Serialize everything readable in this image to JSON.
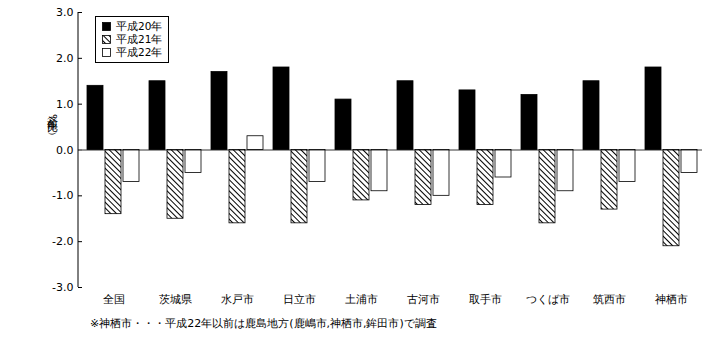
{
  "chart_data": {
    "type": "bar",
    "y_label": "前年比（%）",
    "annotation": "※神栖市・・・平成22年以前は鹿島地方(鹿嶋市,神栖市,鉾田市)で調査",
    "categories": [
      "全国",
      "茨城県",
      "水戸市",
      "日立市",
      "土浦市",
      "古河市",
      "取手市",
      "つくば市",
      "筑西市",
      "神栖市"
    ],
    "series": [
      {
        "name": "平成20年",
        "color": "#000000",
        "values": [
          1.4,
          1.5,
          1.7,
          1.8,
          1.1,
          1.5,
          1.3,
          1.2,
          1.5,
          1.8
        ]
      },
      {
        "name": "平成21年",
        "color": "#000000",
        "line_style": "hatched",
        "values": [
          -1.4,
          -1.5,
          -1.6,
          -1.6,
          -1.1,
          -1.2,
          -1.2,
          -1.6,
          -1.3,
          -2.1
        ]
      },
      {
        "name": "平成22年",
        "color": "#ffffff",
        "values": [
          -0.7,
          -0.5,
          0.3,
          -0.7,
          -0.9,
          -1.0,
          -0.6,
          -0.9,
          -0.7,
          -0.5
        ]
      }
    ],
    "ylim": [
      -3,
      3
    ],
    "yticks": [
      {
        "value": -3,
        "label": "-3.0"
      },
      {
        "value": -2,
        "label": "-2.0"
      },
      {
        "value": -1,
        "label": "-1.0"
      },
      {
        "value": 0,
        "label": "0.0"
      },
      {
        "value": 1,
        "label": "1.0"
      },
      {
        "value": 2,
        "label": "2.0"
      },
      {
        "value": 3,
        "label": "3.0"
      }
    ],
    "grid": false,
    "legend": "top-left"
  }
}
